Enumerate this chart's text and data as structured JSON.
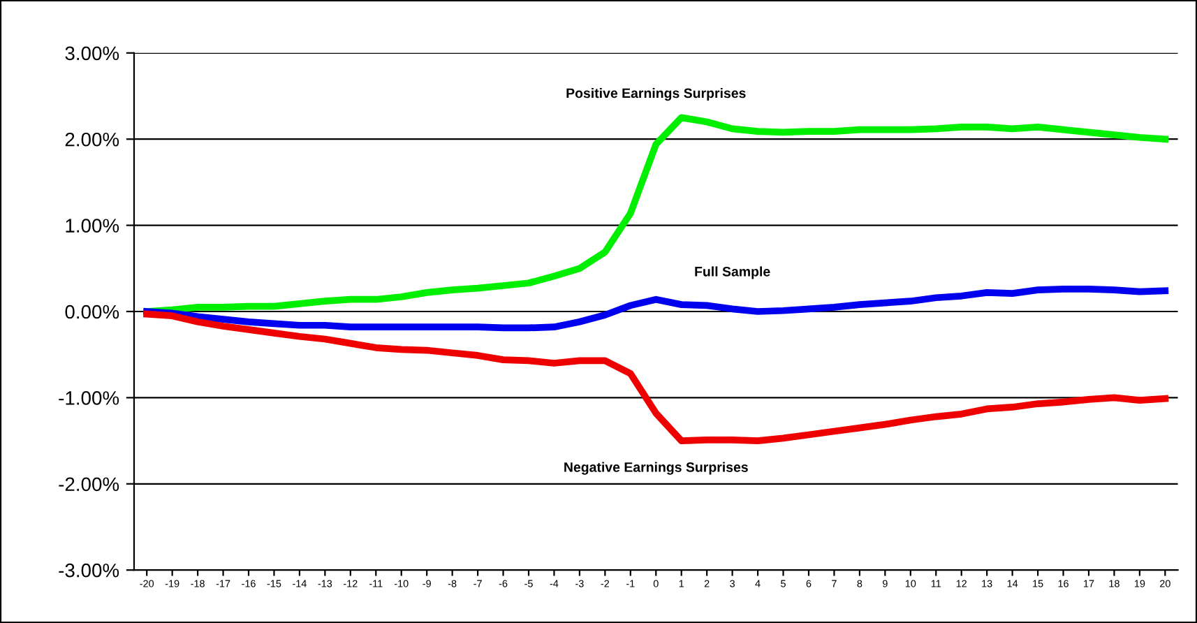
{
  "chart_data": {
    "type": "line",
    "categories": [
      "-20",
      "-19",
      "-18",
      "-17",
      "-16",
      "-15",
      "-14",
      "-13",
      "-12",
      "-11",
      "-10",
      "-9",
      "-8",
      "-7",
      "-6",
      "-5",
      "-4",
      "-3",
      "-2",
      "-1",
      "0",
      "1",
      "2",
      "3",
      "4",
      "5",
      "6",
      "7",
      "8",
      "9",
      "10",
      "11",
      "12",
      "13",
      "14",
      "15",
      "16",
      "17",
      "18",
      "19",
      "20"
    ],
    "series": [
      {
        "name": "Positive Earnings Surprises",
        "color": "#00ee00",
        "values": [
          0,
          0.02,
          0.05,
          0.05,
          0.06,
          0.06,
          0.09,
          0.12,
          0.14,
          0.14,
          0.17,
          0.22,
          0.25,
          0.27,
          0.3,
          0.33,
          0.41,
          0.5,
          0.69,
          1.14,
          1.94,
          2.25,
          2.2,
          2.12,
          2.09,
          2.08,
          2.09,
          2.09,
          2.11,
          2.11,
          2.11,
          2.12,
          2.14,
          2.14,
          2.12,
          2.14,
          2.11,
          2.08,
          2.05,
          2.02,
          2.0
        ]
      },
      {
        "name": "Full Sample",
        "color": "#0000ee",
        "values": [
          0,
          -0.02,
          -0.06,
          -0.09,
          -0.12,
          -0.14,
          -0.16,
          -0.16,
          -0.18,
          -0.18,
          -0.18,
          -0.18,
          -0.18,
          -0.18,
          -0.19,
          -0.19,
          -0.18,
          -0.12,
          -0.04,
          0.07,
          0.14,
          0.08,
          0.07,
          0.03,
          0.0,
          0.01,
          0.03,
          0.05,
          0.08,
          0.1,
          0.12,
          0.16,
          0.18,
          0.22,
          0.21,
          0.25,
          0.26,
          0.26,
          0.25,
          0.23,
          0.24
        ]
      },
      {
        "name": "Negative Earnings Surprises",
        "color": "#ee0000",
        "values": [
          -0.03,
          -0.05,
          -0.12,
          -0.17,
          -0.21,
          -0.25,
          -0.29,
          -0.32,
          -0.37,
          -0.42,
          -0.44,
          -0.45,
          -0.48,
          -0.51,
          -0.56,
          -0.57,
          -0.6,
          -0.57,
          -0.57,
          -0.72,
          -1.18,
          -1.5,
          -1.49,
          -1.49,
          -1.5,
          -1.47,
          -1.43,
          -1.39,
          -1.35,
          -1.31,
          -1.26,
          -1.22,
          -1.19,
          -1.13,
          -1.11,
          -1.07,
          -1.05,
          -1.02,
          -1.0,
          -1.03,
          -1.01
        ]
      }
    ],
    "ylim": [
      -3,
      3
    ],
    "yticks": [
      {
        "value": -3,
        "label": "-3.00%"
      },
      {
        "value": -2,
        "label": "-2.00%"
      },
      {
        "value": -1,
        "label": "-1.00%"
      },
      {
        "value": 0,
        "label": "0.00%"
      },
      {
        "value": 1,
        "label": "1.00%"
      },
      {
        "value": 2,
        "label": "2.00%"
      },
      {
        "value": 3,
        "label": "3.00%"
      }
    ],
    "grid": "y",
    "marker": "none",
    "line_style": "solid"
  }
}
